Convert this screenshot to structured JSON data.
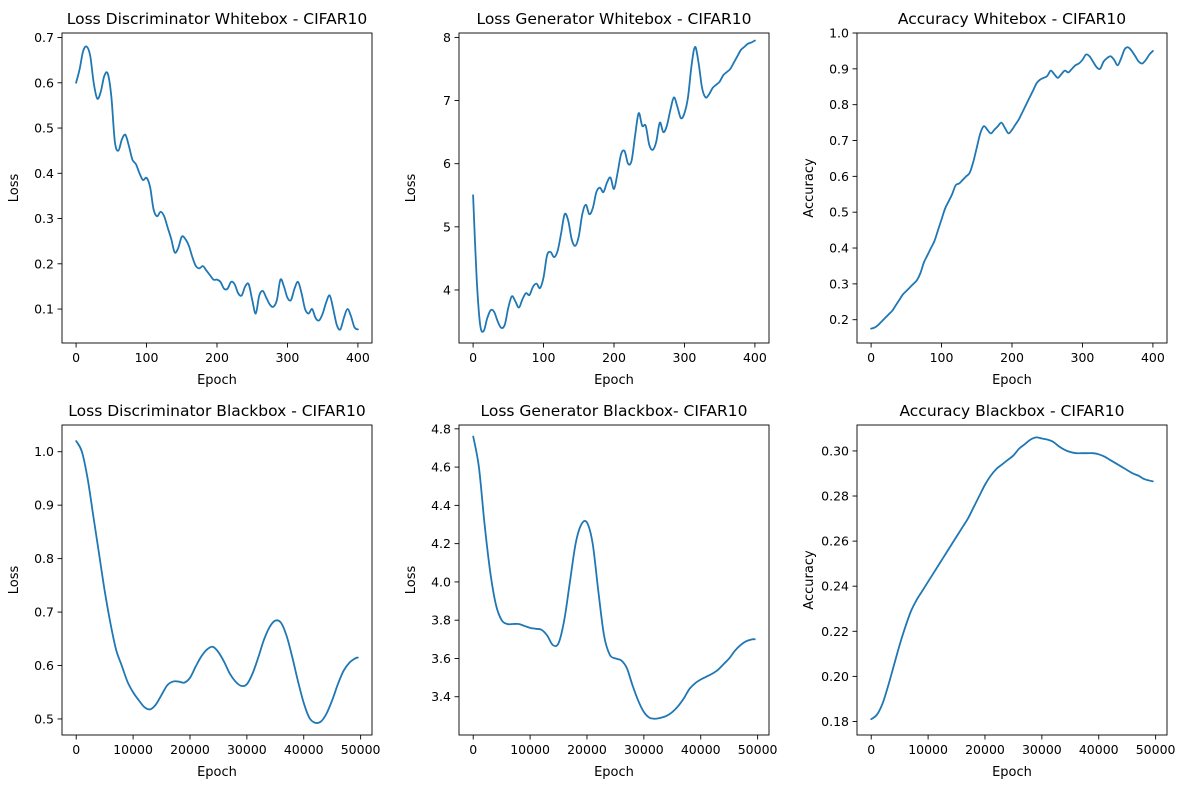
{
  "figure": {
    "line_color": "#1f77b4"
  },
  "chart_data": [
    {
      "type": "line",
      "title": "Loss Discriminator Whitebox - CIFAR10",
      "xlabel": "Epoch",
      "ylabel": "Loss",
      "xlim": [
        -20,
        420
      ],
      "ylim": [
        0.025,
        0.71
      ],
      "xticks": [
        0,
        100,
        200,
        300,
        400
      ],
      "xtick_labels": [
        "0",
        "100",
        "200",
        "300",
        "400"
      ],
      "yticks": [
        0.1,
        0.2,
        0.3,
        0.4,
        0.5,
        0.6,
        0.7
      ],
      "ytick_labels": [
        "0.1",
        "0.2",
        "0.3",
        "0.4",
        "0.5",
        "0.6",
        "0.7"
      ],
      "grid": false,
      "series": [
        {
          "x": [
            0,
            5,
            10,
            15,
            20,
            25,
            30,
            35,
            40,
            45,
            50,
            55,
            60,
            65,
            70,
            75,
            80,
            85,
            90,
            95,
            100,
            105,
            110,
            115,
            120,
            125,
            130,
            135,
            140,
            145,
            150,
            155,
            160,
            165,
            170,
            175,
            180,
            185,
            190,
            195,
            200,
            205,
            210,
            215,
            220,
            225,
            230,
            235,
            240,
            245,
            250,
            255,
            260,
            265,
            270,
            275,
            280,
            285,
            290,
            295,
            300,
            305,
            310,
            315,
            320,
            325,
            330,
            335,
            340,
            345,
            350,
            355,
            360,
            365,
            370,
            375,
            380,
            385,
            390,
            395,
            400
          ],
          "y": [
            0.6,
            0.63,
            0.67,
            0.68,
            0.66,
            0.6,
            0.565,
            0.58,
            0.615,
            0.62,
            0.57,
            0.47,
            0.45,
            0.475,
            0.485,
            0.46,
            0.43,
            0.42,
            0.4,
            0.385,
            0.39,
            0.37,
            0.32,
            0.305,
            0.315,
            0.305,
            0.28,
            0.255,
            0.225,
            0.235,
            0.26,
            0.255,
            0.24,
            0.215,
            0.195,
            0.19,
            0.195,
            0.185,
            0.175,
            0.165,
            0.165,
            0.16,
            0.145,
            0.145,
            0.16,
            0.155,
            0.135,
            0.13,
            0.15,
            0.155,
            0.12,
            0.09,
            0.13,
            0.14,
            0.125,
            0.11,
            0.105,
            0.12,
            0.165,
            0.15,
            0.125,
            0.12,
            0.145,
            0.16,
            0.135,
            0.1,
            0.09,
            0.1,
            0.08,
            0.075,
            0.09,
            0.115,
            0.13,
            0.1,
            0.065,
            0.055,
            0.08,
            0.1,
            0.085,
            0.06,
            0.055
          ]
        }
      ]
    },
    {
      "type": "line",
      "title": "Loss Generator Whitebox - CIFAR10",
      "xlabel": "Epoch",
      "ylabel": "Loss",
      "xlim": [
        -20,
        420
      ],
      "ylim": [
        3.16,
        8.07
      ],
      "xticks": [
        0,
        100,
        200,
        300,
        400
      ],
      "xtick_labels": [
        "0",
        "100",
        "200",
        "300",
        "400"
      ],
      "yticks": [
        4,
        5,
        6,
        7,
        8
      ],
      "ytick_labels": [
        "4",
        "5",
        "6",
        "7",
        "8"
      ],
      "grid": false,
      "series": [
        {
          "x": [
            0,
            5,
            10,
            15,
            20,
            25,
            30,
            35,
            40,
            45,
            50,
            55,
            60,
            65,
            70,
            75,
            80,
            85,
            90,
            95,
            100,
            105,
            110,
            115,
            120,
            125,
            130,
            135,
            140,
            145,
            150,
            155,
            160,
            165,
            170,
            175,
            180,
            185,
            190,
            195,
            200,
            205,
            210,
            215,
            220,
            225,
            230,
            235,
            240,
            245,
            250,
            255,
            260,
            265,
            270,
            275,
            280,
            285,
            290,
            295,
            300,
            305,
            310,
            315,
            320,
            325,
            330,
            335,
            340,
            345,
            350,
            355,
            360,
            365,
            370,
            375,
            380,
            385,
            390,
            395,
            400
          ],
          "y": [
            5.5,
            4.2,
            3.45,
            3.35,
            3.55,
            3.68,
            3.65,
            3.5,
            3.4,
            3.45,
            3.72,
            3.9,
            3.82,
            3.72,
            3.85,
            3.95,
            3.92,
            4.05,
            4.1,
            4.03,
            4.2,
            4.55,
            4.6,
            4.52,
            4.62,
            4.9,
            5.2,
            5.1,
            4.8,
            4.7,
            4.85,
            5.2,
            5.35,
            5.2,
            5.3,
            5.55,
            5.62,
            5.55,
            5.7,
            5.78,
            5.6,
            5.85,
            6.15,
            6.2,
            6.0,
            6.05,
            6.45,
            6.8,
            6.6,
            6.6,
            6.3,
            6.22,
            6.35,
            6.65,
            6.5,
            6.6,
            6.85,
            7.05,
            6.9,
            6.72,
            6.8,
            7.05,
            7.55,
            7.85,
            7.6,
            7.2,
            7.05,
            7.1,
            7.2,
            7.25,
            7.3,
            7.4,
            7.45,
            7.5,
            7.6,
            7.7,
            7.8,
            7.85,
            7.9,
            7.92,
            7.95
          ]
        }
      ]
    },
    {
      "type": "line",
      "title": "Accuracy Whitebox - CIFAR10",
      "xlabel": "Epoch",
      "ylabel": "Accuracy",
      "xlim": [
        -20,
        420
      ],
      "ylim": [
        0.135,
        1.0
      ],
      "xticks": [
        0,
        100,
        200,
        300,
        400
      ],
      "xtick_labels": [
        "0",
        "100",
        "200",
        "300",
        "400"
      ],
      "yticks": [
        0.2,
        0.3,
        0.4,
        0.5,
        0.6,
        0.7,
        0.8,
        0.9,
        1.0
      ],
      "ytick_labels": [
        "0.2",
        "0.3",
        "0.4",
        "0.5",
        "0.6",
        "0.7",
        "0.8",
        "0.9",
        "1.0"
      ],
      "grid": false,
      "series": [
        {
          "x": [
            0,
            5,
            10,
            15,
            20,
            25,
            30,
            35,
            40,
            45,
            50,
            55,
            60,
            65,
            70,
            75,
            80,
            85,
            90,
            95,
            100,
            105,
            110,
            115,
            120,
            125,
            130,
            135,
            140,
            145,
            150,
            155,
            160,
            165,
            170,
            175,
            180,
            185,
            190,
            195,
            200,
            205,
            210,
            215,
            220,
            225,
            230,
            235,
            240,
            245,
            250,
            255,
            260,
            265,
            270,
            275,
            280,
            285,
            290,
            295,
            300,
            305,
            310,
            315,
            320,
            325,
            330,
            335,
            340,
            345,
            350,
            355,
            360,
            365,
            370,
            375,
            380,
            385,
            390,
            395,
            400
          ],
          "y": [
            0.175,
            0.178,
            0.185,
            0.195,
            0.205,
            0.215,
            0.225,
            0.24,
            0.255,
            0.27,
            0.28,
            0.29,
            0.3,
            0.31,
            0.33,
            0.36,
            0.38,
            0.4,
            0.42,
            0.45,
            0.48,
            0.51,
            0.53,
            0.55,
            0.575,
            0.58,
            0.59,
            0.6,
            0.61,
            0.64,
            0.68,
            0.72,
            0.74,
            0.73,
            0.72,
            0.73,
            0.74,
            0.75,
            0.735,
            0.72,
            0.73,
            0.745,
            0.76,
            0.78,
            0.8,
            0.82,
            0.84,
            0.86,
            0.87,
            0.875,
            0.88,
            0.895,
            0.885,
            0.875,
            0.885,
            0.895,
            0.89,
            0.9,
            0.91,
            0.915,
            0.925,
            0.94,
            0.935,
            0.92,
            0.905,
            0.9,
            0.92,
            0.93,
            0.935,
            0.925,
            0.91,
            0.93,
            0.955,
            0.96,
            0.95,
            0.935,
            0.92,
            0.915,
            0.925,
            0.94,
            0.95
          ]
        }
      ]
    },
    {
      "type": "line",
      "title": "Loss Discriminator Blackbox - CIFAR10",
      "xlabel": "Epoch",
      "ylabel": "Loss",
      "xlim": [
        -2500,
        52000
      ],
      "ylim": [
        0.47,
        1.05
      ],
      "xticks": [
        0,
        10000,
        20000,
        30000,
        40000,
        50000
      ],
      "xtick_labels": [
        "0",
        "10000",
        "20000",
        "30000",
        "40000",
        "50000"
      ],
      "yticks": [
        0.5,
        0.6,
        0.7,
        0.8,
        0.9,
        1.0
      ],
      "ytick_labels": [
        "0.5",
        "0.6",
        "0.7",
        "0.8",
        "0.9",
        "1.0"
      ],
      "grid": false,
      "series": [
        {
          "x": [
            0,
            1000,
            2000,
            3000,
            4000,
            5000,
            6000,
            7000,
            8000,
            9000,
            10000,
            11000,
            12000,
            13000,
            14000,
            15000,
            16000,
            17000,
            18000,
            19000,
            20000,
            21000,
            22000,
            23000,
            24000,
            25000,
            26000,
            27000,
            28000,
            29000,
            30000,
            31000,
            32000,
            33000,
            34000,
            35000,
            36000,
            37000,
            38000,
            39000,
            40000,
            41000,
            42000,
            43000,
            44000,
            45000,
            46000,
            47000,
            48000,
            49000,
            49500
          ],
          "y": [
            1.02,
            1.0,
            0.95,
            0.88,
            0.81,
            0.74,
            0.68,
            0.63,
            0.6,
            0.57,
            0.55,
            0.535,
            0.522,
            0.518,
            0.527,
            0.545,
            0.563,
            0.57,
            0.57,
            0.568,
            0.577,
            0.598,
            0.617,
            0.63,
            0.635,
            0.625,
            0.607,
            0.585,
            0.57,
            0.562,
            0.565,
            0.585,
            0.615,
            0.648,
            0.672,
            0.684,
            0.68,
            0.655,
            0.615,
            0.57,
            0.53,
            0.502,
            0.493,
            0.495,
            0.51,
            0.535,
            0.565,
            0.59,
            0.605,
            0.613,
            0.615
          ]
        }
      ]
    },
    {
      "type": "line",
      "title": "Loss Generator Blackbox- CIFAR10",
      "xlabel": "Epoch",
      "ylabel": "Loss",
      "xlim": [
        -2500,
        52000
      ],
      "ylim": [
        3.2,
        4.82
      ],
      "xticks": [
        0,
        10000,
        20000,
        30000,
        40000,
        50000
      ],
      "xtick_labels": [
        "0",
        "10000",
        "20000",
        "30000",
        "40000",
        "50000"
      ],
      "yticks": [
        3.4,
        3.6,
        3.8,
        4.0,
        4.2,
        4.4,
        4.6,
        4.8
      ],
      "ytick_labels": [
        "3.4",
        "3.6",
        "3.8",
        "4.0",
        "4.2",
        "4.4",
        "4.6",
        "4.8"
      ],
      "grid": false,
      "series": [
        {
          "x": [
            0,
            1000,
            2000,
            3000,
            4000,
            5000,
            6000,
            7000,
            8000,
            9000,
            10000,
            11000,
            12000,
            13000,
            14000,
            15000,
            16000,
            17000,
            18000,
            19000,
            20000,
            21000,
            22000,
            23000,
            24000,
            25000,
            26000,
            27000,
            28000,
            29000,
            30000,
            31000,
            32000,
            33000,
            34000,
            35000,
            36000,
            37000,
            38000,
            39000,
            40000,
            41000,
            42000,
            43000,
            44000,
            45000,
            46000,
            47000,
            48000,
            49000,
            49500
          ],
          "y": [
            4.76,
            4.6,
            4.3,
            4.05,
            3.88,
            3.8,
            3.78,
            3.78,
            3.78,
            3.77,
            3.76,
            3.755,
            3.75,
            3.72,
            3.67,
            3.68,
            3.8,
            4.0,
            4.2,
            4.3,
            4.31,
            4.2,
            3.95,
            3.72,
            3.62,
            3.6,
            3.59,
            3.55,
            3.46,
            3.38,
            3.32,
            3.29,
            3.285,
            3.29,
            3.3,
            3.32,
            3.35,
            3.39,
            3.44,
            3.47,
            3.49,
            3.505,
            3.52,
            3.54,
            3.57,
            3.6,
            3.64,
            3.67,
            3.69,
            3.7,
            3.7
          ]
        }
      ]
    },
    {
      "type": "line",
      "title": "Accuracy Blackbox - CIFAR10",
      "xlabel": "Epoch",
      "ylabel": "Accuracy",
      "xlim": [
        -2500,
        52000
      ],
      "ylim": [
        0.174,
        0.3115
      ],
      "xticks": [
        0,
        10000,
        20000,
        30000,
        40000,
        50000
      ],
      "xtick_labels": [
        "0",
        "10000",
        "20000",
        "30000",
        "40000",
        "50000"
      ],
      "yticks": [
        0.18,
        0.2,
        0.22,
        0.24,
        0.26,
        0.28,
        0.3
      ],
      "ytick_labels": [
        "0.18",
        "0.20",
        "0.22",
        "0.24",
        "0.26",
        "0.28",
        "0.30"
      ],
      "grid": false,
      "series": [
        {
          "x": [
            0,
            1000,
            2000,
            3000,
            4000,
            5000,
            6000,
            7000,
            8000,
            9000,
            10000,
            11000,
            12000,
            13000,
            14000,
            15000,
            16000,
            17000,
            18000,
            19000,
            20000,
            21000,
            22000,
            23000,
            24000,
            25000,
            26000,
            27000,
            28000,
            29000,
            30000,
            31000,
            32000,
            33000,
            34000,
            35000,
            36000,
            37000,
            38000,
            39000,
            40000,
            41000,
            42000,
            43000,
            44000,
            45000,
            46000,
            47000,
            48000,
            49000,
            49500
          ],
          "y": [
            0.181,
            0.183,
            0.188,
            0.196,
            0.205,
            0.214,
            0.222,
            0.229,
            0.234,
            0.238,
            0.242,
            0.246,
            0.25,
            0.254,
            0.258,
            0.262,
            0.266,
            0.27,
            0.275,
            0.28,
            0.285,
            0.289,
            0.292,
            0.294,
            0.296,
            0.298,
            0.301,
            0.303,
            0.305,
            0.306,
            0.3055,
            0.305,
            0.304,
            0.302,
            0.3005,
            0.2995,
            0.299,
            0.299,
            0.299,
            0.299,
            0.2985,
            0.2975,
            0.296,
            0.2945,
            0.293,
            0.2915,
            0.29,
            0.289,
            0.2875,
            0.2868,
            0.2865
          ]
        }
      ]
    }
  ]
}
